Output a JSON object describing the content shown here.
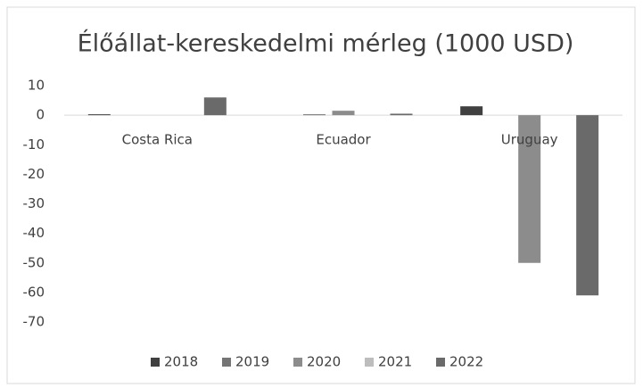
{
  "chart_data": {
    "type": "bar",
    "title": "Élőállat-kereskedelmi mérleg (1000 USD)",
    "categories": [
      "Costa Rica",
      "Ecuador",
      "Uruguay"
    ],
    "series": [
      {
        "name": "2018",
        "color": "#404040",
        "values": [
          0.3,
          0,
          3
        ]
      },
      {
        "name": "2019",
        "color": "#757575",
        "values": [
          0,
          0.3,
          0
        ]
      },
      {
        "name": "2020",
        "color": "#8c8c8c",
        "values": [
          0,
          1.5,
          -50
        ]
      },
      {
        "name": "2021",
        "color": "#bdbdbd",
        "values": [
          0,
          0,
          0
        ]
      },
      {
        "name": "2022",
        "color": "#6a6a6a",
        "values": [
          6,
          0.5,
          -61
        ]
      }
    ],
    "ylim": [
      -70,
      10
    ],
    "yticks": [
      -70,
      -60,
      -50,
      -40,
      -30,
      -20,
      -10,
      0,
      10
    ],
    "legend": "bottom"
  }
}
